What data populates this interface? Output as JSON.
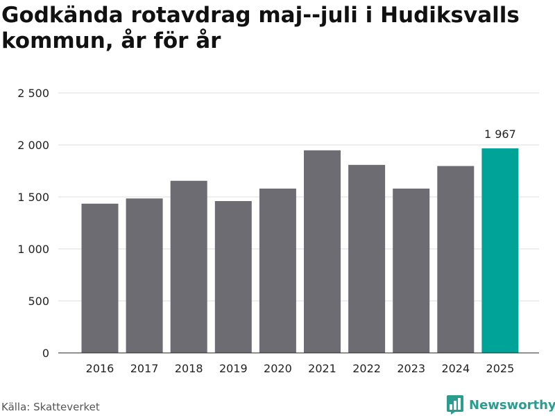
{
  "title": "Godkända rotavdrag maj--juli i Hudiksvalls kommun, år för år",
  "source": "Källa: Skatteverket",
  "brand": {
    "name": "Newsworthy",
    "icon": "bar-chart-icon",
    "color": "#2a9d8f"
  },
  "colors": {
    "bar": "#6d6c72",
    "highlight": "#00a397",
    "grid": "#dddddd",
    "axis": "#222222",
    "text": "#222222"
  },
  "chart_data": {
    "type": "bar",
    "title": "Godkända rotavdrag maj--juli i Hudiksvalls kommun, år för år",
    "categories": [
      "2016",
      "2017",
      "2018",
      "2019",
      "2020",
      "2021",
      "2022",
      "2023",
      "2024",
      "2025"
    ],
    "values": [
      1435,
      1485,
      1655,
      1460,
      1580,
      1948,
      1808,
      1580,
      1797,
      1967
    ],
    "highlight_index": 9,
    "data_labels": {
      "9": "1 967"
    },
    "yticks": [
      0,
      500,
      1000,
      1500,
      2000,
      2500
    ],
    "ytick_labels": [
      "0",
      "500",
      "1 000",
      "1 500",
      "2 000",
      "2 500"
    ],
    "ylim": [
      0,
      2500
    ],
    "grid": true,
    "xlabel": "",
    "ylabel": ""
  }
}
